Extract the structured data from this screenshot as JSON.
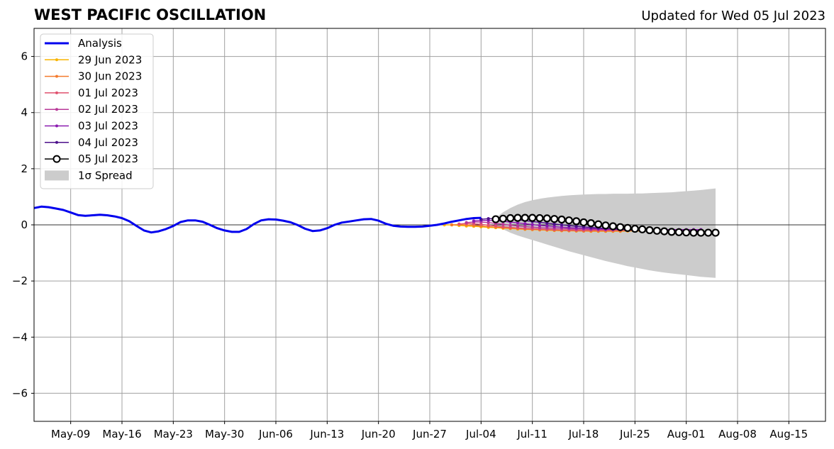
{
  "title": "WEST PACIFIC OSCILLATION",
  "subtitle": "Updated for Wed 05 Jul 2023",
  "chart_data": {
    "type": "line",
    "xlim": [
      "2023-05-04",
      "2023-08-20"
    ],
    "ylim": [
      -7,
      7
    ],
    "grid": true,
    "legend_position": "top-left",
    "x_ticks": [
      "May-09",
      "May-16",
      "May-23",
      "May-30",
      "Jun-06",
      "Jun-13",
      "Jun-20",
      "Jun-27",
      "Jul-04",
      "Jul-11",
      "Jul-18",
      "Jul-25",
      "Aug-01",
      "Aug-08",
      "Aug-15"
    ],
    "x_tick_dates": [
      "2023-05-09",
      "2023-05-16",
      "2023-05-23",
      "2023-05-30",
      "2023-06-06",
      "2023-06-13",
      "2023-06-20",
      "2023-06-27",
      "2023-07-04",
      "2023-07-11",
      "2023-07-18",
      "2023-07-25",
      "2023-08-01",
      "2023-08-08",
      "2023-08-15"
    ],
    "y_ticks": [
      6,
      4,
      2,
      0,
      -2,
      -4,
      -6
    ],
    "y_tick_labels": [
      "6",
      "4",
      "2",
      "0",
      "−2",
      "−4",
      "−6"
    ],
    "series": [
      {
        "name": "Analysis",
        "color": "#0000ee",
        "start_date": "2023-05-04",
        "values": [
          0.6,
          0.65,
          0.63,
          0.58,
          0.53,
          0.44,
          0.35,
          0.32,
          0.34,
          0.36,
          0.34,
          0.3,
          0.24,
          0.13,
          -0.04,
          -0.2,
          -0.27,
          -0.23,
          -0.15,
          -0.04,
          0.1,
          0.16,
          0.16,
          0.11,
          0.0,
          -0.12,
          -0.2,
          -0.25,
          -0.25,
          -0.15,
          0.03,
          0.16,
          0.2,
          0.19,
          0.15,
          0.09,
          -0.01,
          -0.14,
          -0.22,
          -0.2,
          -0.12,
          0.0,
          0.08,
          0.12,
          0.16,
          0.2,
          0.21,
          0.15,
          0.04,
          -0.03,
          -0.06,
          -0.07,
          -0.07,
          -0.06,
          -0.03,
          0.0,
          0.05,
          0.11,
          0.16,
          0.21,
          0.24,
          0.25
        ]
      },
      {
        "name": "29 Jun 2023",
        "color": "#f8b400",
        "marker": "dot",
        "start_date": "2023-06-29",
        "values": [
          0.0,
          0.0,
          -0.02,
          -0.04,
          -0.05,
          -0.07,
          -0.09,
          -0.1,
          -0.12,
          -0.13,
          -0.15,
          -0.16,
          -0.17,
          -0.18,
          -0.19,
          -0.2,
          -0.21,
          -0.21,
          -0.22,
          -0.22,
          -0.23,
          -0.23,
          -0.23,
          -0.23,
          -0.23,
          -0.22,
          -0.22,
          -0.22,
          -0.21,
          -0.21,
          -0.21,
          -0.2,
          -0.2,
          -0.2,
          -0.2,
          -0.2
        ]
      },
      {
        "name": "30 Jun 2023",
        "color": "#f47a2c",
        "marker": "dot",
        "start_date": "2023-06-30",
        "values": [
          0.0,
          0.01,
          0.0,
          -0.02,
          -0.04,
          -0.06,
          -0.08,
          -0.1,
          -0.12,
          -0.13,
          -0.15,
          -0.16,
          -0.17,
          -0.18,
          -0.19,
          -0.2,
          -0.21,
          -0.21,
          -0.22,
          -0.22,
          -0.22,
          -0.22,
          -0.22,
          -0.22,
          -0.21,
          -0.21,
          -0.21,
          -0.21,
          -0.2,
          -0.2,
          -0.2,
          -0.2,
          -0.2,
          -0.2,
          -0.2
        ]
      },
      {
        "name": "01 Jul 2023",
        "color": "#e0506e",
        "marker": "dot",
        "start_date": "2023-07-01",
        "values": [
          0.03,
          0.05,
          0.04,
          0.02,
          -0.01,
          -0.04,
          -0.07,
          -0.09,
          -0.11,
          -0.13,
          -0.14,
          -0.15,
          -0.16,
          -0.17,
          -0.18,
          -0.18,
          -0.19,
          -0.19,
          -0.19,
          -0.19,
          -0.19,
          -0.19,
          -0.19,
          -0.19,
          -0.19,
          -0.19,
          -0.19,
          -0.19,
          -0.19,
          -0.19,
          -0.19,
          -0.19,
          -0.19,
          -0.19
        ]
      },
      {
        "name": "02 Jul 2023",
        "color": "#b83898",
        "marker": "dot",
        "start_date": "2023-07-02",
        "values": [
          0.08,
          0.1,
          0.1,
          0.08,
          0.05,
          0.02,
          -0.01,
          -0.04,
          -0.06,
          -0.08,
          -0.1,
          -0.11,
          -0.12,
          -0.13,
          -0.14,
          -0.15,
          -0.15,
          -0.16,
          -0.16,
          -0.17,
          -0.17,
          -0.17,
          -0.18,
          -0.18,
          -0.18,
          -0.18,
          -0.18,
          -0.18,
          -0.18,
          -0.18,
          -0.18,
          -0.18,
          -0.18
        ]
      },
      {
        "name": "03 Jul 2023",
        "color": "#8a1ab0",
        "marker": "dot",
        "start_date": "2023-07-03",
        "values": [
          0.14,
          0.16,
          0.16,
          0.15,
          0.13,
          0.1,
          0.07,
          0.04,
          0.01,
          -0.02,
          -0.04,
          -0.06,
          -0.08,
          -0.1,
          -0.11,
          -0.12,
          -0.13,
          -0.14,
          -0.15,
          -0.15,
          -0.16,
          -0.16,
          -0.17,
          -0.17,
          -0.17,
          -0.17,
          -0.17,
          -0.17,
          -0.17,
          -0.17,
          -0.17,
          -0.17
        ]
      },
      {
        "name": "04 Jul 2023",
        "color": "#4b0f8a",
        "marker": "dot",
        "start_date": "2023-07-04",
        "values": [
          0.2,
          0.22,
          0.22,
          0.21,
          0.2,
          0.18,
          0.15,
          0.12,
          0.09,
          0.06,
          0.03,
          0.0,
          -0.03,
          -0.05,
          -0.07,
          -0.09,
          -0.11,
          -0.13,
          -0.14,
          -0.16,
          -0.17,
          -0.18,
          -0.19,
          -0.2,
          -0.2,
          -0.21,
          -0.21,
          -0.21,
          -0.21,
          -0.21,
          -0.21
        ]
      },
      {
        "name": "05 Jul 2023",
        "color": "#000000",
        "marker": "circle",
        "start_date": "2023-07-06",
        "values": [
          0.2,
          0.22,
          0.24,
          0.25,
          0.25,
          0.25,
          0.24,
          0.23,
          0.21,
          0.19,
          0.16,
          0.13,
          0.09,
          0.06,
          0.02,
          -0.02,
          -0.05,
          -0.08,
          -0.11,
          -0.14,
          -0.16,
          -0.19,
          -0.21,
          -0.23,
          -0.25,
          -0.26,
          -0.27,
          -0.28,
          -0.28,
          -0.28,
          -0.28
        ]
      }
    ],
    "spread": {
      "name": "1σ Spread",
      "color": "#cccccc",
      "start_date": "2023-07-06",
      "upper": [
        0.26,
        0.45,
        0.6,
        0.72,
        0.81,
        0.88,
        0.93,
        0.97,
        1.0,
        1.03,
        1.05,
        1.07,
        1.08,
        1.09,
        1.1,
        1.1,
        1.11,
        1.11,
        1.11,
        1.12,
        1.12,
        1.13,
        1.14,
        1.15,
        1.16,
        1.18,
        1.2,
        1.22,
        1.24,
        1.27,
        1.3
      ],
      "lower": [
        0.0,
        -0.16,
        -0.28,
        -0.38,
        -0.46,
        -0.54,
        -0.62,
        -0.7,
        -0.78,
        -0.86,
        -0.94,
        -1.01,
        -1.08,
        -1.15,
        -1.22,
        -1.29,
        -1.35,
        -1.41,
        -1.47,
        -1.52,
        -1.57,
        -1.62,
        -1.66,
        -1.7,
        -1.73,
        -1.76,
        -1.79,
        -1.82,
        -1.85,
        -1.87,
        -1.89
      ]
    }
  }
}
